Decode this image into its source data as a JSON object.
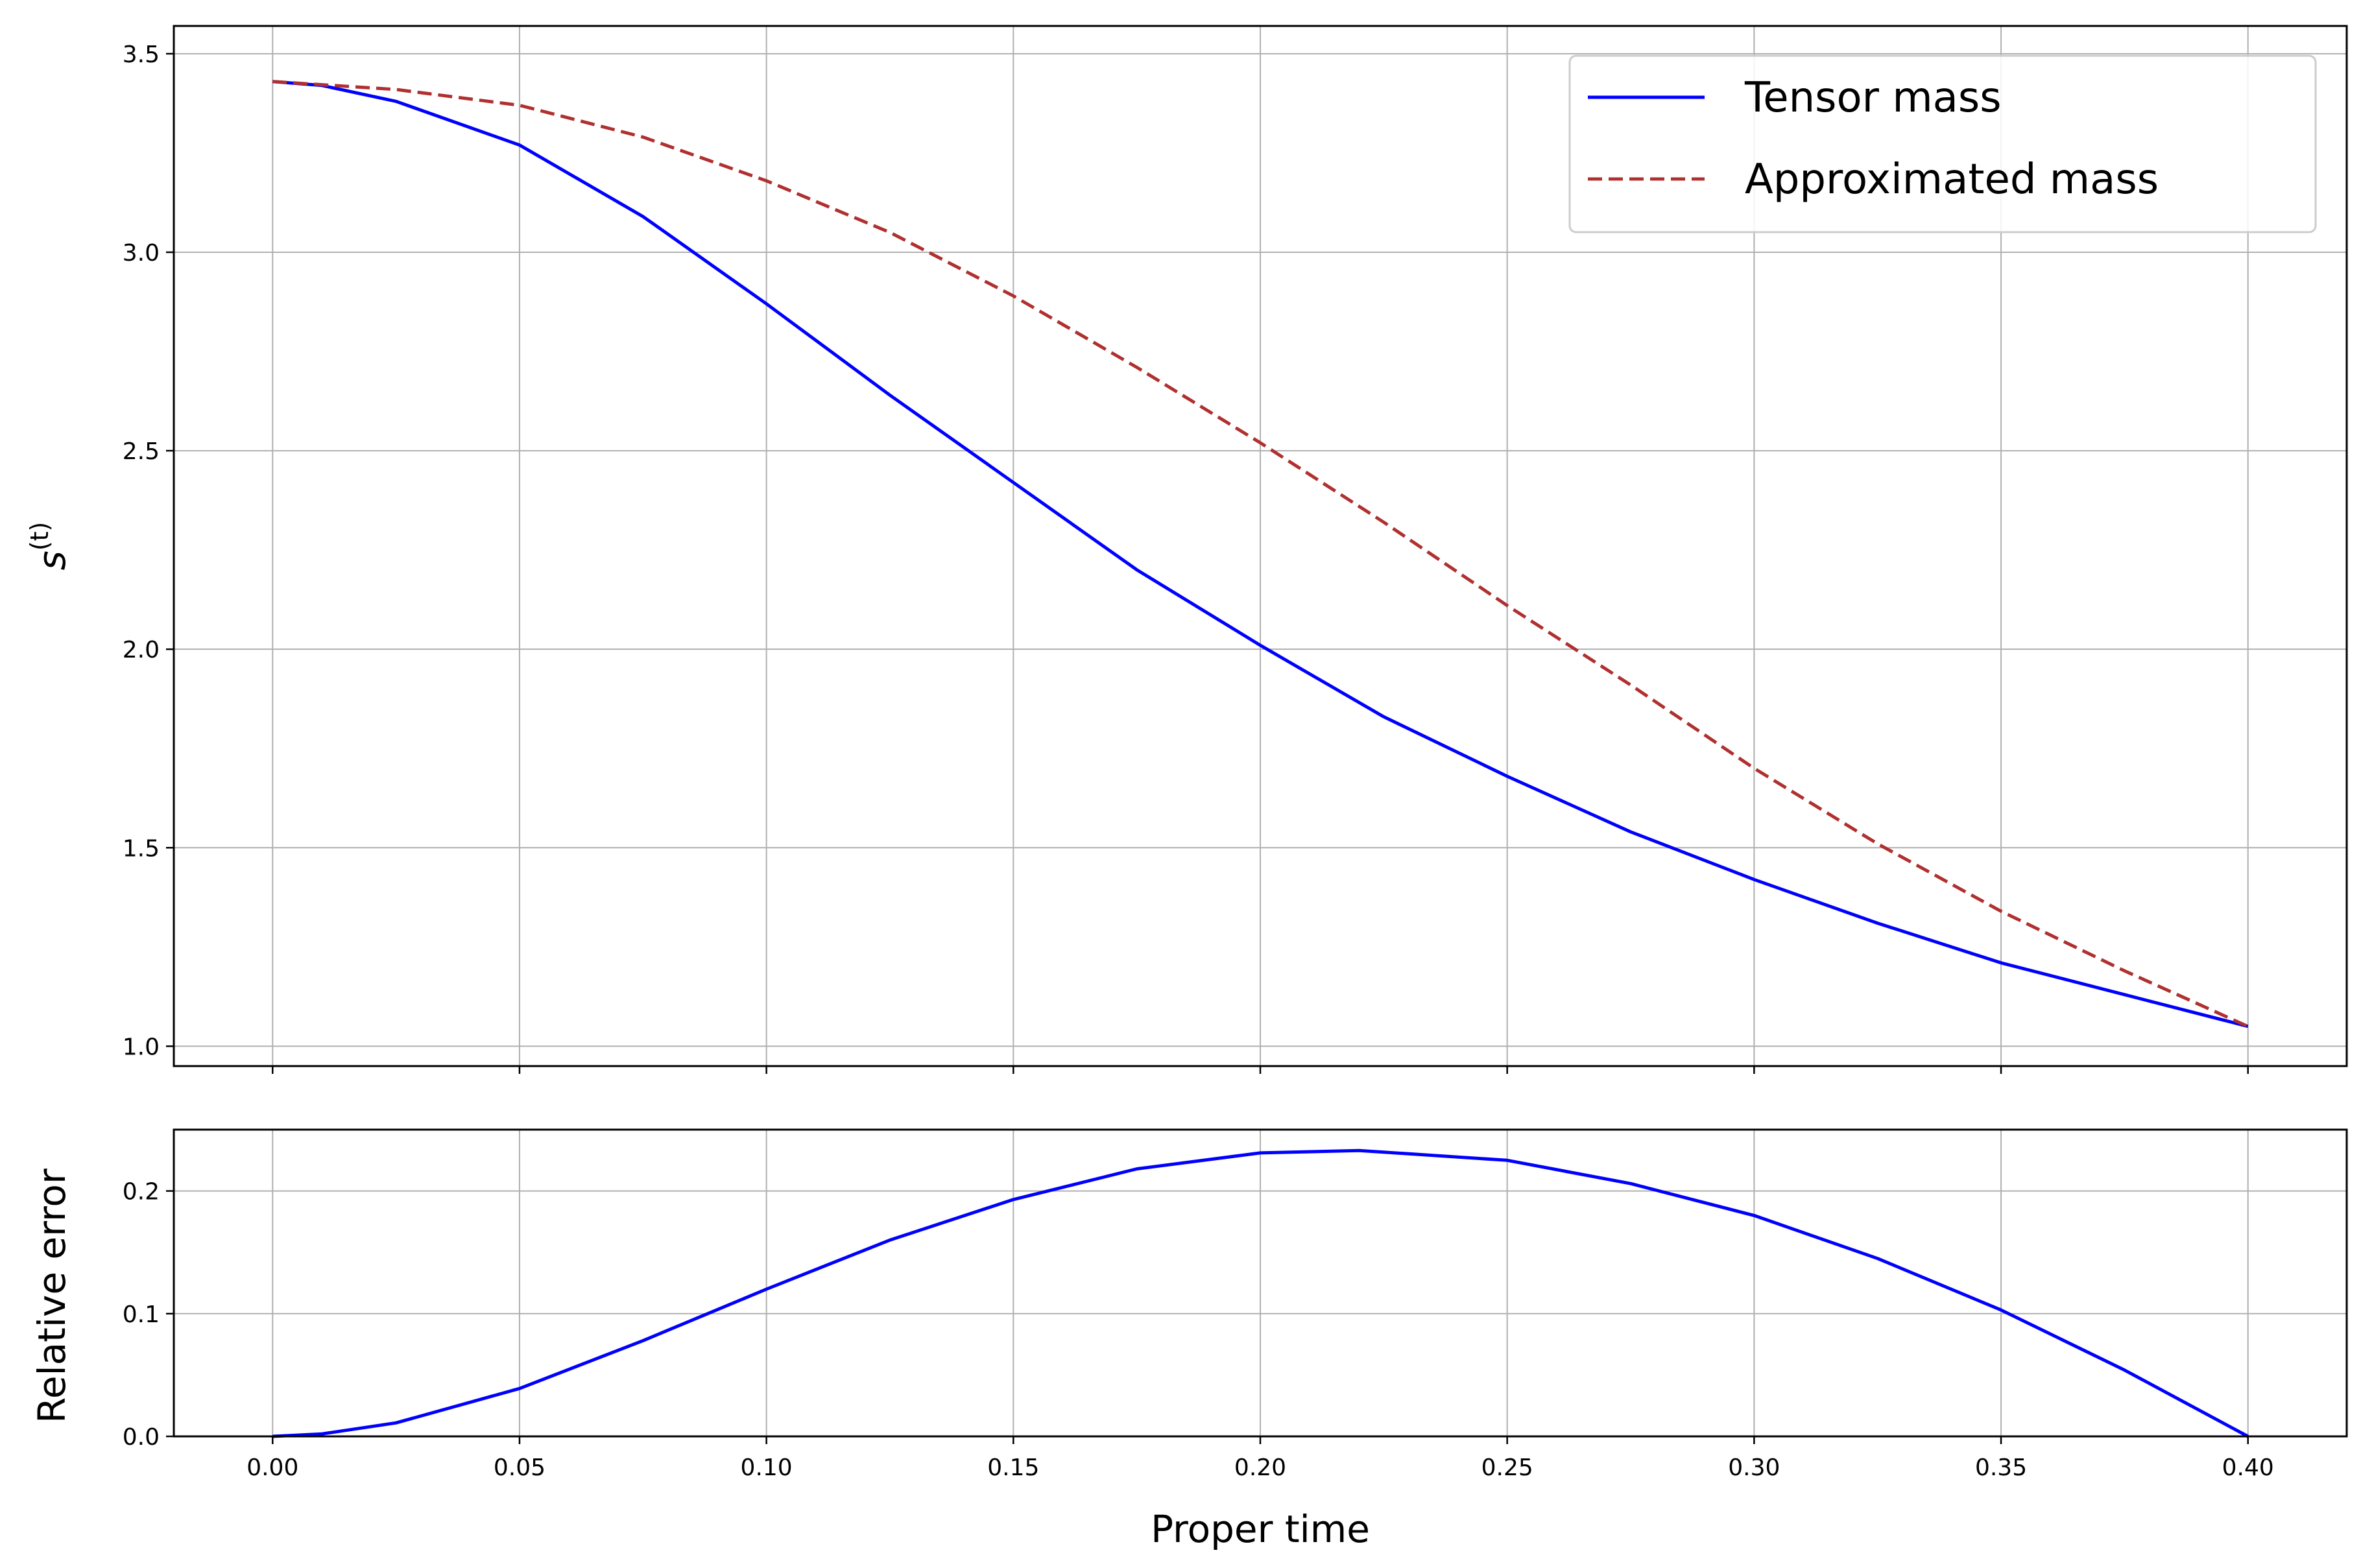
{
  "chart_data": [
    {
      "type": "line",
      "id": "top",
      "xlim": [
        -0.02,
        0.42
      ],
      "ylim": [
        0.95,
        3.57
      ],
      "xticks": [
        0.0,
        0.05,
        0.1,
        0.15,
        0.2,
        0.25,
        0.3,
        0.35,
        0.4
      ],
      "yticks": [
        1.0,
        1.5,
        2.0,
        2.5,
        3.0,
        3.5
      ],
      "ytick_labels": [
        "1.0",
        "1.5",
        "2.0",
        "2.5",
        "3.0",
        "3.5"
      ],
      "xtick_labels_visible": false,
      "ylabel_base": "s",
      "ylabel_sup": "(t)",
      "grid": true,
      "legend_position": "upper-right",
      "series": [
        {
          "name": "Tensor mass",
          "color": "#0000ff",
          "style": "solid",
          "x": [
            0.0,
            0.01,
            0.025,
            0.05,
            0.075,
            0.1,
            0.125,
            0.15,
            0.175,
            0.2,
            0.225,
            0.25,
            0.275,
            0.3,
            0.325,
            0.35,
            0.375,
            0.4
          ],
          "y": [
            3.43,
            3.42,
            3.38,
            3.27,
            3.09,
            2.87,
            2.64,
            2.42,
            2.2,
            2.01,
            1.83,
            1.68,
            1.54,
            1.42,
            1.31,
            1.21,
            1.13,
            1.05
          ]
        },
        {
          "name": "Approximated mass",
          "color": "#b03030",
          "style": "dashed",
          "x": [
            0.0,
            0.025,
            0.05,
            0.075,
            0.1,
            0.125,
            0.15,
            0.175,
            0.2,
            0.225,
            0.25,
            0.275,
            0.3,
            0.325,
            0.35,
            0.375,
            0.4
          ],
          "y": [
            3.43,
            3.41,
            3.37,
            3.29,
            3.18,
            3.05,
            2.89,
            2.71,
            2.52,
            2.32,
            2.11,
            1.91,
            1.7,
            1.51,
            1.34,
            1.19,
            1.05
          ]
        }
      ]
    },
    {
      "type": "line",
      "id": "bottom",
      "xlim": [
        -0.02,
        0.42
      ],
      "ylim": [
        0.0,
        0.25
      ],
      "xticks": [
        0.0,
        0.05,
        0.1,
        0.15,
        0.2,
        0.25,
        0.3,
        0.35,
        0.4
      ],
      "xtick_labels": [
        "0.00",
        "0.05",
        "0.10",
        "0.15",
        "0.20",
        "0.25",
        "0.30",
        "0.35",
        "0.40"
      ],
      "yticks": [
        0.0,
        0.1,
        0.2
      ],
      "ytick_labels": [
        "0.0",
        "0.1",
        "0.2"
      ],
      "xlabel": "Proper time",
      "ylabel": "Relative error",
      "grid": true,
      "series": [
        {
          "color": "#0000ff",
          "style": "solid",
          "x": [
            0.0,
            0.01,
            0.025,
            0.05,
            0.075,
            0.1,
            0.125,
            0.15,
            0.175,
            0.2,
            0.22,
            0.25,
            0.275,
            0.3,
            0.325,
            0.35,
            0.375,
            0.4
          ],
          "y": [
            0.0,
            0.002,
            0.011,
            0.039,
            0.078,
            0.12,
            0.16,
            0.193,
            0.218,
            0.231,
            0.233,
            0.225,
            0.206,
            0.18,
            0.145,
            0.103,
            0.054,
            0.0
          ]
        }
      ]
    }
  ]
}
